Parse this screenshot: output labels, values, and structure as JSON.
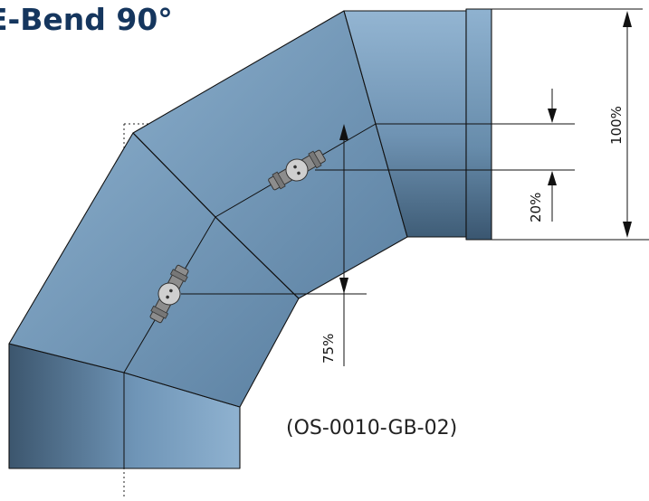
{
  "title": "E-Bend 90°",
  "part_code": "(OS-0010-GB-02)",
  "dimensions": {
    "total": "100%",
    "upper_offset": "20%",
    "lower_offset": "75%"
  },
  "colors": {
    "title": "#15365e",
    "pipe": "#7aa0c2",
    "pipe_dark": "#3e5a73",
    "fitting": "#8d8d8d"
  }
}
